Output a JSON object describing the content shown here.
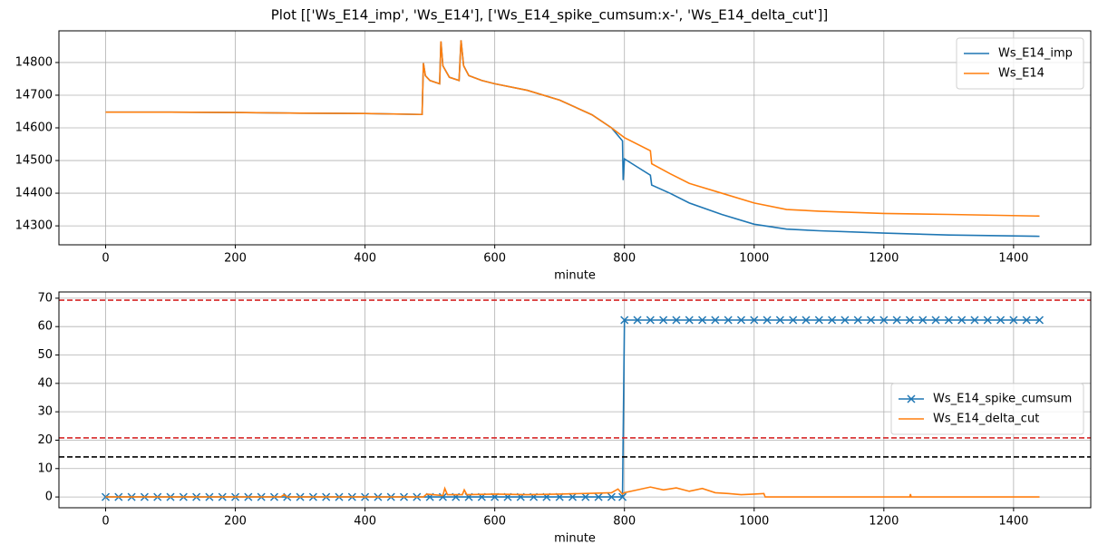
{
  "title": "Plot [['Ws_E14_imp', 'Ws_E14'], ['Ws_E14_spike_cumsum:x-', 'Ws_E14_delta_cut']]",
  "chart_data": [
    {
      "type": "line",
      "xlabel": "minute",
      "xlim": [
        -72,
        1519
      ],
      "ylim": [
        14242,
        14897
      ],
      "xticks": [
        0,
        200,
        400,
        600,
        800,
        1000,
        1200,
        1400
      ],
      "yticks": [
        14300,
        14400,
        14500,
        14600,
        14700,
        14800
      ],
      "grid": true,
      "legend": "upper right",
      "series": [
        {
          "name": "Ws_E14_imp",
          "color": "#1f77b4",
          "x": [
            0,
            100,
            200,
            300,
            400,
            488,
            490,
            493,
            500,
            515,
            517,
            520,
            530,
            545,
            548,
            552,
            560,
            580,
            600,
            650,
            700,
            750,
            780,
            797,
            798,
            800,
            820,
            840,
            842,
            870,
            900,
            950,
            1000,
            1050,
            1100,
            1200,
            1300,
            1440
          ],
          "values": [
            14648,
            14648,
            14647,
            14645,
            14644,
            14641,
            14798,
            14760,
            14745,
            14735,
            14865,
            14790,
            14755,
            14745,
            14868,
            14790,
            14760,
            14745,
            14735,
            14715,
            14685,
            14640,
            14600,
            14560,
            14440,
            14505,
            14480,
            14455,
            14425,
            14400,
            14370,
            14335,
            14305,
            14290,
            14285,
            14278,
            14272,
            14268
          ]
        },
        {
          "name": "Ws_E14",
          "color": "#ff7f0e",
          "x": [
            0,
            100,
            200,
            300,
            400,
            488,
            490,
            493,
            500,
            515,
            517,
            520,
            530,
            545,
            548,
            552,
            560,
            580,
            600,
            650,
            700,
            750,
            780,
            800,
            840,
            842,
            870,
            900,
            950,
            1000,
            1050,
            1100,
            1200,
            1300,
            1440
          ],
          "values": [
            14648,
            14648,
            14647,
            14645,
            14644,
            14641,
            14798,
            14760,
            14745,
            14735,
            14865,
            14790,
            14755,
            14745,
            14868,
            14790,
            14760,
            14745,
            14735,
            14715,
            14685,
            14640,
            14600,
            14570,
            14530,
            14490,
            14460,
            14430,
            14400,
            14370,
            14350,
            14345,
            14338,
            14335,
            14330
          ]
        }
      ]
    },
    {
      "type": "line",
      "xlabel": "minute",
      "xlim": [
        -72,
        1519
      ],
      "ylim": [
        -3.8,
        72.2
      ],
      "xticks": [
        0,
        200,
        400,
        600,
        800,
        1000,
        1200,
        1400
      ],
      "yticks": [
        0,
        10,
        20,
        30,
        40,
        50,
        60,
        70
      ],
      "grid": true,
      "legend": "center right",
      "hlines": [
        {
          "value": 69.3,
          "color": "#d62728"
        },
        {
          "value": 20.8,
          "color": "#d62728"
        },
        {
          "value": 14.1,
          "color": "#000000"
        }
      ],
      "series": [
        {
          "name": "Ws_E14_spike_cumsum",
          "color": "#1f77b4",
          "marker": "x",
          "x": [
            0,
            20,
            40,
            60,
            80,
            100,
            120,
            140,
            160,
            180,
            200,
            220,
            240,
            260,
            280,
            300,
            320,
            340,
            360,
            380,
            400,
            420,
            440,
            460,
            480,
            500,
            520,
            540,
            560,
            580,
            600,
            620,
            640,
            660,
            680,
            700,
            720,
            740,
            760,
            780,
            797,
            800,
            820,
            840,
            860,
            880,
            900,
            920,
            940,
            960,
            980,
            1000,
            1020,
            1040,
            1060,
            1080,
            1100,
            1120,
            1140,
            1160,
            1180,
            1200,
            1220,
            1240,
            1260,
            1280,
            1300,
            1320,
            1340,
            1360,
            1380,
            1400,
            1420,
            1440
          ],
          "values": [
            0,
            0,
            0,
            0,
            0,
            0,
            0,
            0,
            0,
            0,
            0,
            0,
            0,
            0,
            0,
            0,
            0,
            0,
            0,
            0,
            0,
            0,
            0,
            0,
            0,
            0,
            0,
            0,
            0,
            0,
            0,
            0,
            0,
            0,
            0,
            0,
            0,
            0,
            0,
            0,
            0,
            62.3,
            62.3,
            62.3,
            62.3,
            62.3,
            62.3,
            62.3,
            62.3,
            62.3,
            62.3,
            62.3,
            62.3,
            62.3,
            62.3,
            62.3,
            62.3,
            62.3,
            62.3,
            62.3,
            62.3,
            62.3,
            62.3,
            62.3,
            62.3,
            62.3,
            62.3,
            62.3,
            62.3,
            62.3,
            62.3,
            62.3,
            62.3,
            62.3
          ]
        },
        {
          "name": "Ws_E14_delta_cut",
          "color": "#ff7f0e",
          "x": [
            0,
            270,
            275,
            280,
            490,
            495,
            520,
            523,
            527,
            550,
            553,
            557,
            600,
            650,
            700,
            750,
            780,
            790,
            797,
            800,
            820,
            840,
            860,
            880,
            900,
            920,
            940,
            960,
            980,
            1000,
            1015,
            1017,
            1240,
            1241,
            1242,
            1440
          ],
          "values": [
            0,
            0,
            0.8,
            0,
            0,
            1,
            0.5,
            3,
            0.8,
            0.8,
            2.5,
            0.8,
            1,
            0.8,
            1,
            1.3,
            1.5,
            2.8,
            1,
            1.5,
            2.5,
            3.5,
            2.5,
            3.2,
            2,
            3,
            1.5,
            1.2,
            0.8,
            1,
            1.2,
            0,
            0,
            1,
            0,
            0
          ]
        }
      ]
    }
  ]
}
